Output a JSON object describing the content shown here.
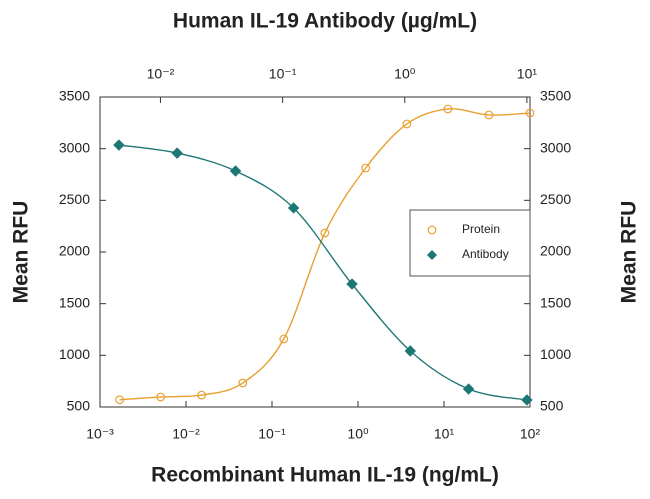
{
  "chart_data": {
    "type": "scatter",
    "title": "Human IL-19 Antibody (µg/mL)",
    "xlabel": "Recombinant Human IL-19 (ng/mL)",
    "ylabel": "Mean RFU",
    "y2label": "Mean RFU",
    "xscale": "log",
    "x2scale": "log",
    "xlim": [
      0.001,
      100
    ],
    "xticks": [
      {
        "value": 0.001,
        "label": "10⁻³"
      },
      {
        "value": 0.01,
        "label": "10⁻²"
      },
      {
        "value": 0.1,
        "label": "10⁻¹"
      },
      {
        "value": 1,
        "label": "10⁰"
      },
      {
        "value": 10,
        "label": "10¹"
      },
      {
        "value": 100,
        "label": "10²"
      }
    ],
    "x2lim": [
      0.0032,
      10.6
    ],
    "x2ticks": [
      {
        "value": 0.01,
        "label": "10⁻²"
      },
      {
        "value": 0.1,
        "label": "10⁻¹"
      },
      {
        "value": 1,
        "label": "10⁰"
      },
      {
        "value": 10,
        "label": "10¹"
      }
    ],
    "ylim": [
      500,
      3500
    ],
    "yticks": [
      500,
      1000,
      1500,
      2000,
      2500,
      3000,
      3500
    ],
    "y2lim": [
      500,
      3500
    ],
    "y2ticks": [
      500,
      1000,
      1500,
      2000,
      2500,
      3000,
      3500
    ],
    "legend": "right",
    "series": [
      {
        "name": "Protein",
        "color": "#e8a030",
        "marker": "circle-open",
        "x": [
          0.00169,
          0.00508,
          0.0152,
          0.0457,
          0.137,
          0.412,
          1.23,
          3.7,
          11.1,
          33.3,
          100
        ],
        "values": [
          570,
          597,
          615,
          732,
          1158,
          2184,
          2813,
          3239,
          3384,
          3326,
          3345
        ]
      },
      {
        "name": "Antibody",
        "color": "#1d7775",
        "marker": "diamond",
        "axis": "x2",
        "x": [
          0.00457,
          0.0137,
          0.0412,
          0.123,
          0.37,
          1.11,
          3.33,
          10
        ],
        "values": [
          3035,
          2957,
          2784,
          2426,
          1690,
          1042,
          674,
          568
        ]
      }
    ]
  }
}
